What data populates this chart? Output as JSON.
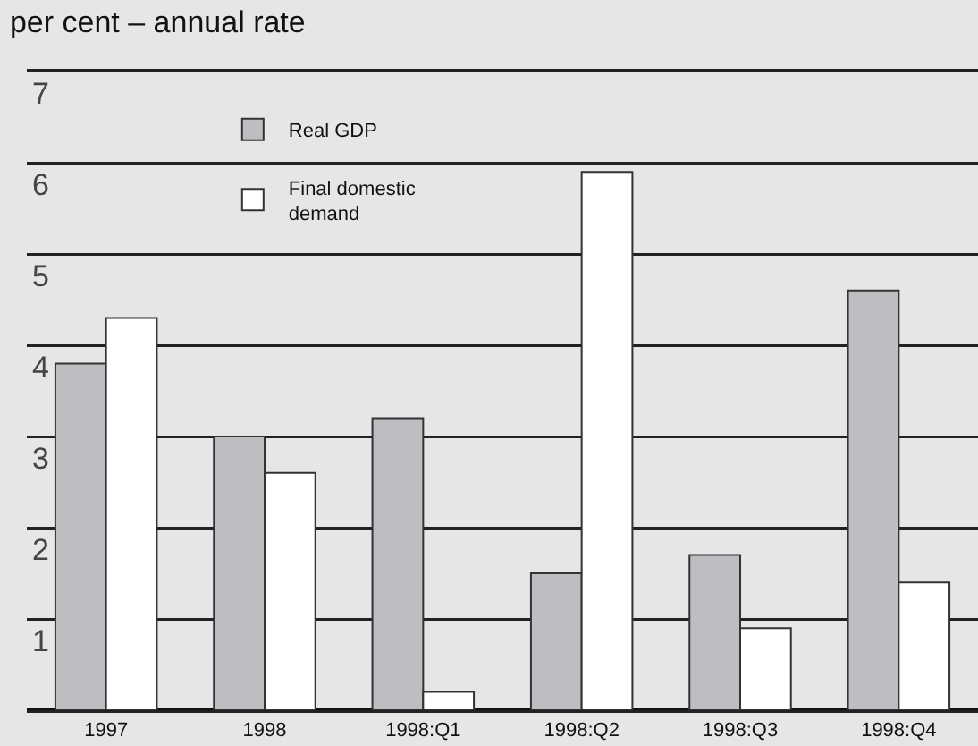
{
  "chart_data": {
    "type": "bar",
    "title": "per cent – annual rate",
    "categories": [
      "1997",
      "1998",
      "1998:Q1",
      "1998:Q2",
      "1998:Q3",
      "1998:Q4"
    ],
    "series": [
      {
        "name": "Real GDP",
        "color": "#bdbec2",
        "values": [
          3.8,
          3.0,
          3.2,
          1.5,
          1.7,
          4.6
        ]
      },
      {
        "name": "Final domestic demand",
        "color": "#ffffff",
        "values": [
          4.3,
          2.6,
          0.2,
          5.9,
          0.9,
          1.4
        ]
      }
    ],
    "ylim": [
      0,
      7
    ],
    "yticks": [
      1,
      2,
      3,
      4,
      5,
      6,
      7
    ],
    "grid": "y",
    "legend": "top left"
  }
}
